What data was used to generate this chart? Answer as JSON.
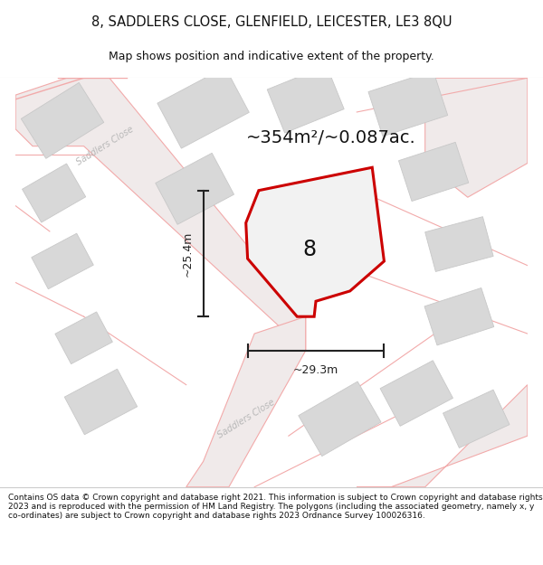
{
  "title_line1": "8, SADDLERS CLOSE, GLENFIELD, LEICESTER, LE3 8QU",
  "title_line2": "Map shows position and indicative extent of the property.",
  "area_text": "~354m²/~0.087ac.",
  "label_number": "8",
  "dim_height": "~25.4m",
  "dim_width": "~29.3m",
  "footer_text": "Contains OS data © Crown copyright and database right 2021. This information is subject to Crown copyright and database rights 2023 and is reproduced with the permission of HM Land Registry. The polygons (including the associated geometry, namely x, y co-ordinates) are subject to Crown copyright and database rights 2023 Ordnance Survey 100026316.",
  "map_bg": "#f7f4f4",
  "plot_fill": "#efefef",
  "plot_edge": "#cc0000",
  "road_color": "#f2aaaa",
  "road_fill": "#f7f4f4",
  "building_color": "#d8d8d8",
  "building_edge": "#c8c8c8",
  "dim_color": "#222222",
  "title_color": "#111111",
  "footer_color": "#111111",
  "area_color": "#111111",
  "number_color": "#111111",
  "street_label_color": "#b8b8b8"
}
